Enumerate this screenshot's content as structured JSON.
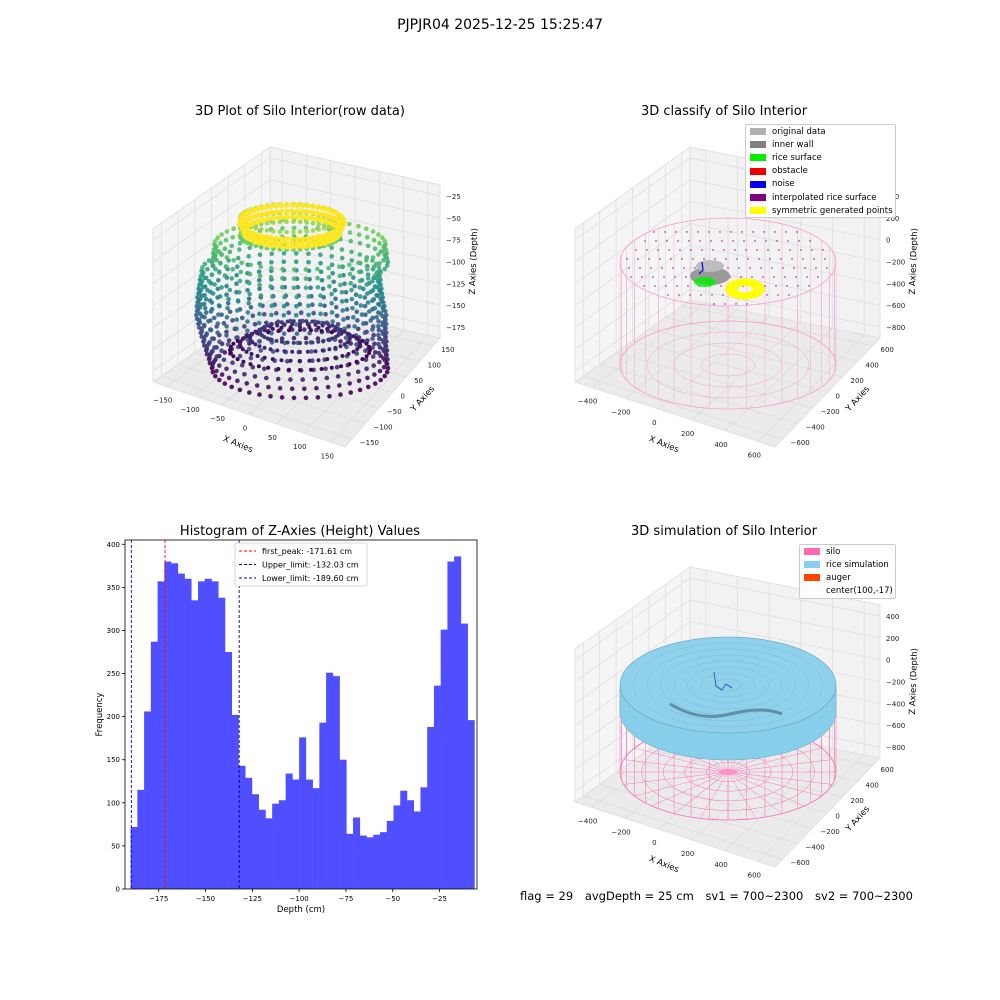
{
  "suptitle": "PJPJR04 2025-12-25 15:25:47",
  "panels": {
    "raw": {
      "title": "3D Plot of Silo Interior(row data)",
      "xlabel": "X Axies",
      "ylabel": "Y Axies",
      "zlabel": "Z Axies (Depth)",
      "xticks": [
        "−150",
        "−100",
        "−50",
        "0",
        "50",
        "100",
        "150"
      ],
      "yticks": [
        "−150",
        "−100",
        "−50",
        "0",
        "50",
        "100",
        "150"
      ],
      "zticks": [
        "−25",
        "−50",
        "−75",
        "−100",
        "−125",
        "−150",
        "−175"
      ]
    },
    "classify": {
      "title": "3D classify of Silo Interior",
      "xlabel": "X Axies",
      "ylabel": "Y Axies",
      "zlabel": "Z Axies (Depth)",
      "xticks": [
        "−400",
        "−200",
        "0",
        "200",
        "400",
        "600"
      ],
      "yticks": [
        "−600",
        "−400",
        "−200",
        "0",
        "200",
        "400",
        "600"
      ],
      "zticks": [
        "400",
        "200",
        "0",
        "−200",
        "−400",
        "−600",
        "−800"
      ],
      "legend": [
        {
          "label": "original data",
          "color": "#b0b0b0"
        },
        {
          "label": "inner wall",
          "color": "#808080"
        },
        {
          "label": "rice surface",
          "color": "#00ee00"
        },
        {
          "label": "obstacle",
          "color": "#ee0000"
        },
        {
          "label": "noise",
          "color": "#0000ee"
        },
        {
          "label": "interpolated rice surface",
          "color": "#800080"
        },
        {
          "label": "symmetric generated points",
          "color": "#ffff00"
        }
      ]
    },
    "hist": {
      "title": "Histogram of Z-Axies (Height) Values",
      "xlabel": "Depth (cm)",
      "ylabel": "Frequency",
      "legend": [
        {
          "label": "first_peak: -171.61 cm",
          "color": "#ff0000"
        },
        {
          "label": "Upper_limit: -132.03 cm",
          "color": "#00008b"
        },
        {
          "label": "Lower_limit: -189.60 cm",
          "color": "#0000ff"
        }
      ]
    },
    "sim": {
      "title": "3D simulation of Silo Interior",
      "xlabel": "X Axies",
      "ylabel": "Y Axies",
      "zlabel": "Z Axies (Depth)",
      "xticks": [
        "−400",
        "−200",
        "0",
        "200",
        "400",
        "600"
      ],
      "yticks": [
        "−600",
        "−400",
        "−200",
        "0",
        "200",
        "400",
        "600"
      ],
      "zticks": [
        "400",
        "200",
        "0",
        "−200",
        "−400",
        "−600",
        "−800"
      ],
      "legend": [
        {
          "label": "silo",
          "color": "#ff69b4"
        },
        {
          "label": "rice simulation",
          "color": "#87ceeb"
        },
        {
          "label": "auger",
          "color": "#ff4500"
        },
        {
          "label": "center(100,-17)",
          "color": "#ffffff"
        }
      ]
    }
  },
  "status": {
    "flag": "flag = 29",
    "avg_depth": "avgDepth = 25 cm",
    "sv1": "sv1 = 700~2300",
    "sv2": "sv2 = 700~2300"
  },
  "chart_data": [
    {
      "type": "scatter",
      "title": "3D Plot of Silo Interior(row data)",
      "xlabel": "X Axies",
      "ylabel": "Y Axies",
      "zlabel": "Z Axies (Depth)",
      "xlim": [
        -165,
        160
      ],
      "ylim": [
        -165,
        160
      ],
      "zlim": [
        -190,
        -10
      ],
      "colormap": "viridis",
      "grid": true
    },
    {
      "type": "scatter",
      "title": "3D classify of Silo Interior",
      "xlabel": "X Axies",
      "ylabel": "Y Axies",
      "zlabel": "Z Axies (Depth)",
      "series": [
        {
          "name": "original data"
        },
        {
          "name": "inner wall"
        },
        {
          "name": "rice surface"
        },
        {
          "name": "obstacle"
        },
        {
          "name": "noise"
        },
        {
          "name": "interpolated rice surface"
        },
        {
          "name": "symmetric generated points"
        }
      ],
      "legend_position": "top-right",
      "grid": true
    },
    {
      "type": "bar",
      "title": "Histogram of Z-Axies (Height) Values",
      "xlabel": "Depth (cm)",
      "ylabel": "Frequency",
      "bin_start": -190.0,
      "bin_width": 3.6,
      "values": [
        72,
        115,
        206,
        287,
        357,
        380,
        378,
        366,
        360,
        335,
        357,
        360,
        357,
        338,
        275,
        202,
        143,
        129,
        110,
        92,
        82,
        99,
        103,
        134,
        127,
        176,
        127,
        117,
        193,
        251,
        247,
        150,
        64,
        83,
        62,
        60,
        63,
        66,
        79,
        97,
        114,
        103,
        90,
        118,
        188,
        236,
        301,
        380,
        386,
        308,
        196
      ],
      "xticks": [
        -175,
        -150,
        -125,
        -100,
        -75,
        -50,
        -25
      ],
      "xtick_labels": [
        "−175",
        "−150",
        "−125",
        "−100",
        "−75",
        "−50",
        "−25"
      ],
      "yticks": [
        0,
        50,
        100,
        150,
        200,
        250,
        300,
        350,
        400
      ],
      "xlim": [
        -193,
        -5
      ],
      "ylim": [
        0,
        405
      ],
      "vlines": [
        {
          "name": "first_peak: -171.61 cm",
          "x": -171.61,
          "color": "#ff0000"
        },
        {
          "name": "Upper_limit: -132.03 cm",
          "x": -132.03,
          "color": "#00008b"
        },
        {
          "name": "Lower_limit: -189.60 cm",
          "x": -189.6,
          "color": "#0000ff"
        }
      ],
      "bar_color": "#4f4fff",
      "legend_position": "top-center"
    },
    {
      "type": "scatter",
      "title": "3D simulation of Silo Interior",
      "xlabel": "X Axies",
      "ylabel": "Y Axies",
      "zlabel": "Z Axies (Depth)",
      "series": [
        {
          "name": "silo"
        },
        {
          "name": "rice simulation"
        },
        {
          "name": "auger"
        },
        {
          "name": "center(100,-17)"
        }
      ],
      "legend_position": "top-right",
      "grid": true
    }
  ]
}
